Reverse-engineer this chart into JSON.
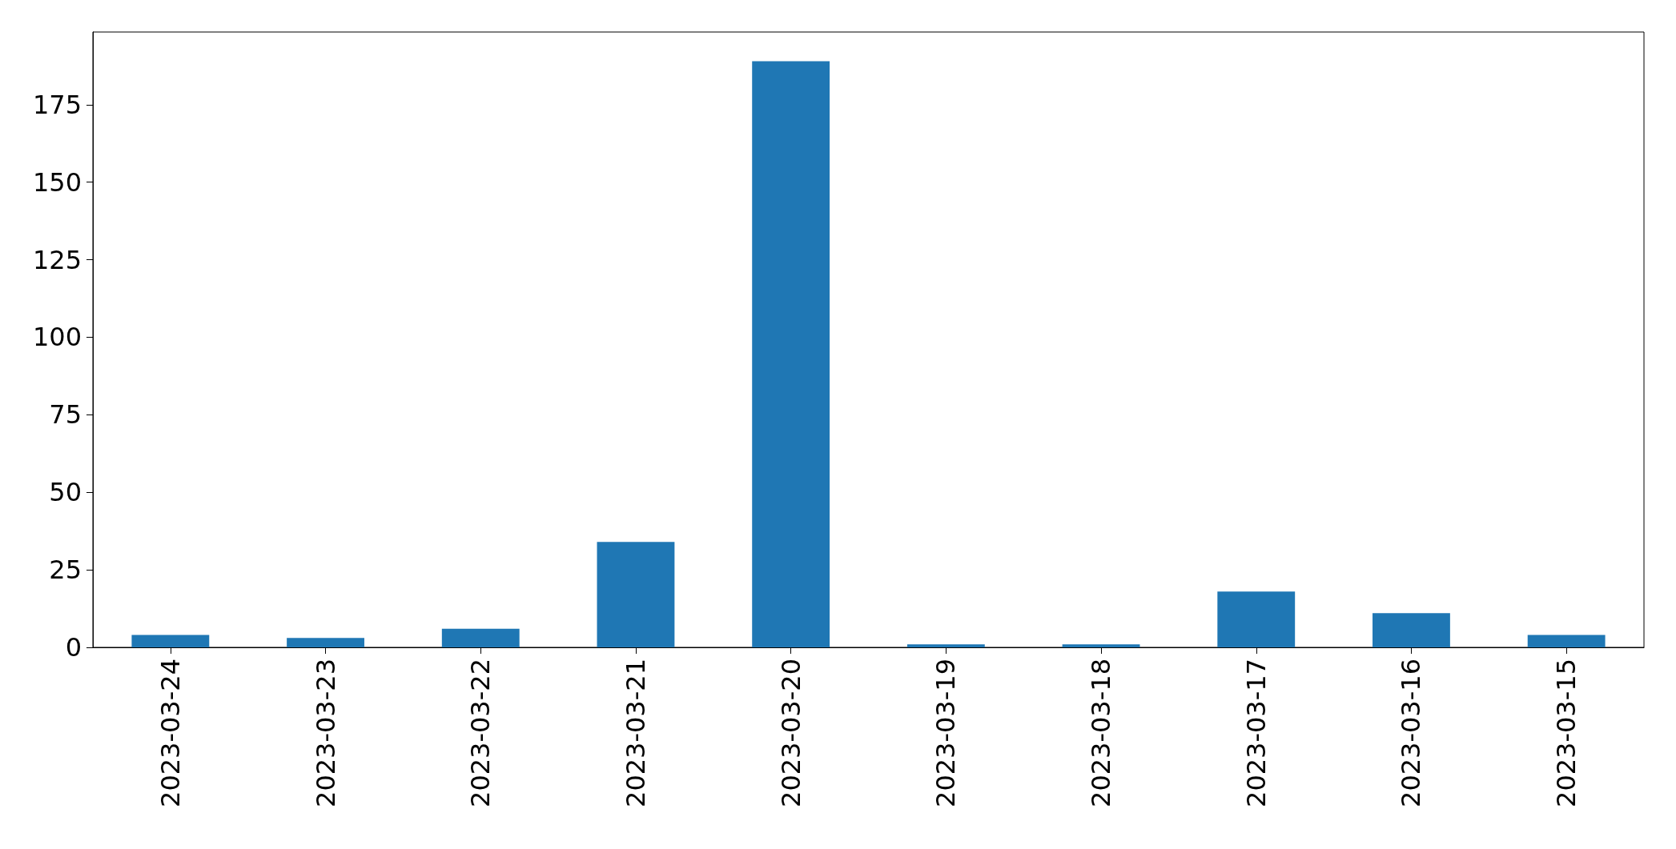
{
  "chart_data": {
    "type": "bar",
    "categories": [
      "2023-03-24",
      "2023-03-23",
      "2023-03-22",
      "2023-03-21",
      "2023-03-20",
      "2023-03-19",
      "2023-03-18",
      "2023-03-17",
      "2023-03-16",
      "2023-03-15"
    ],
    "values": [
      4,
      3,
      6,
      34,
      189,
      1,
      1,
      18,
      11,
      4
    ],
    "color": "#1f77b4",
    "ylim": [
      0,
      198.45
    ],
    "yticks": [
      0,
      25,
      50,
      75,
      100,
      125,
      150,
      175
    ],
    "grid": false
  }
}
